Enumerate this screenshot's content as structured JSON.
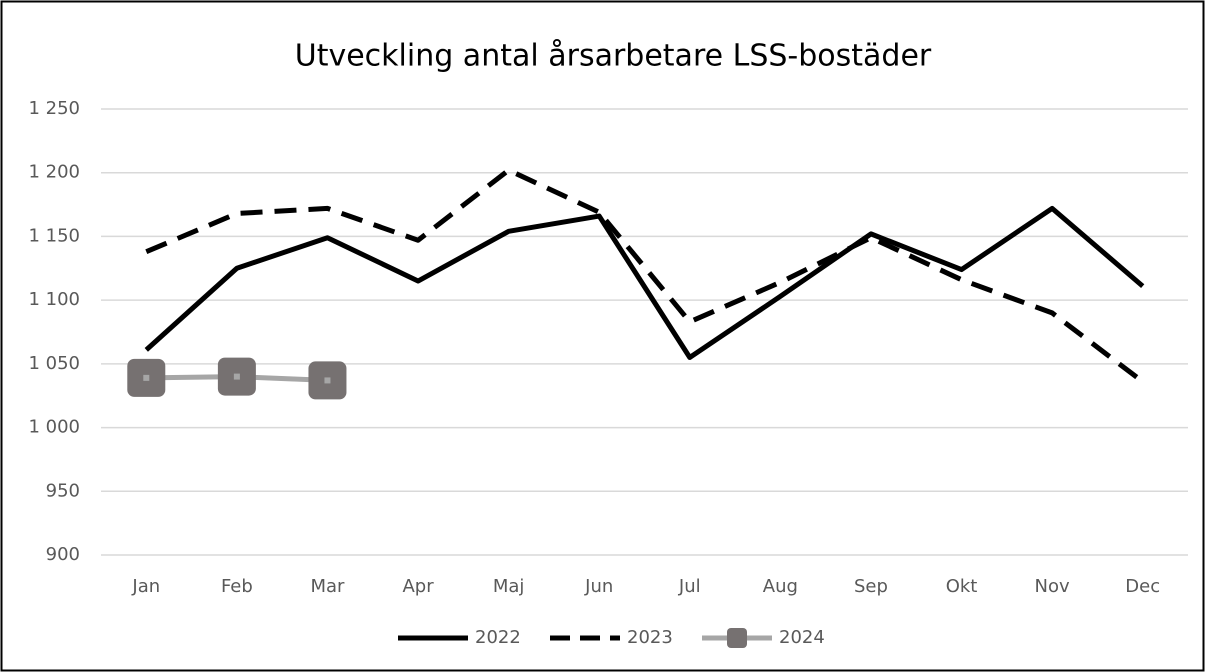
{
  "chart_data": {
    "type": "line",
    "title": "Utveckling antal årsarbetare LSS-bostäder",
    "categories": [
      "Jan",
      "Feb",
      "Mar",
      "Apr",
      "Maj",
      "Jun",
      "Jul",
      "Aug",
      "Sep",
      "Okt",
      "Nov",
      "Dec"
    ],
    "series": [
      {
        "name": "2022",
        "color": "#000000",
        "dash": "solid",
        "values": [
          1061,
          1125,
          1149,
          1115,
          1154,
          1166,
          1055,
          1103,
          1152,
          1124,
          1172,
          1111
        ]
      },
      {
        "name": "2023",
        "color": "#000000",
        "dash": "dashed",
        "values": [
          1138,
          1168,
          1172,
          1147,
          1202,
          1169,
          1083,
          1114,
          1149,
          1116,
          1090,
          1036
        ]
      },
      {
        "name": "2024",
        "color": "#a6a6a6",
        "marker": "square",
        "marker_color": "#767171",
        "values": [
          1039,
          1040,
          1037,
          null,
          null,
          null,
          null,
          null,
          null,
          null,
          null,
          null
        ]
      }
    ],
    "ylim": [
      900,
      1250
    ],
    "yticks": [
      900,
      950,
      {
        "value": 1000,
        "label": "1 000"
      },
      {
        "value": 1050,
        "label": "1 050"
      },
      {
        "value": 1100,
        "label": "1 100"
      },
      {
        "value": 1150,
        "label": "1 150"
      },
      {
        "value": 1200,
        "label": "1 200"
      },
      {
        "value": 1250,
        "label": "1 250"
      }
    ],
    "grid": true,
    "legend": "bottom"
  }
}
